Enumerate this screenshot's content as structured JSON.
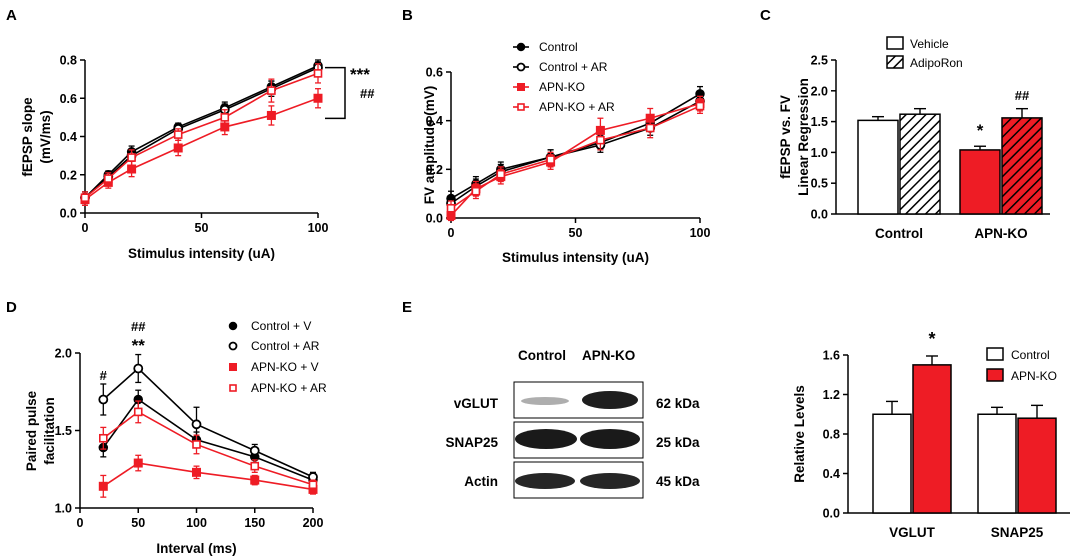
{
  "panels": {
    "A": "A",
    "B": "B",
    "C": "C",
    "D": "D",
    "E": "E"
  },
  "colors": {
    "black": "#000000",
    "red": "#ee1c25"
  },
  "chart_data": [
    {
      "id": "A",
      "type": "line",
      "xlabel": "Stimulus intensity (uA)",
      "ylabel": "fEPSP slope",
      "ylabel2": "(mV/ms)",
      "xlim": [
        0,
        100
      ],
      "ylim": [
        0,
        0.8
      ],
      "xticks": [
        0,
        50,
        100
      ],
      "yticks": [
        0.0,
        0.2,
        0.4,
        0.6,
        0.8
      ],
      "ytick_labels": [
        "0.0",
        "0.2",
        "0.4",
        "0.6",
        "0.8"
      ],
      "x": [
        0,
        10,
        20,
        40,
        60,
        80,
        100
      ],
      "series": [
        {
          "name": "Control",
          "color": "#000000",
          "marker": "filled-circle",
          "values": [
            0.08,
            0.2,
            0.32,
            0.45,
            0.55,
            0.66,
            0.77
          ],
          "err": [
            0.03,
            0.02,
            0.03,
            0.02,
            0.03,
            0.03,
            0.03
          ]
        },
        {
          "name": "Control + AR",
          "color": "#000000",
          "marker": "open-circle",
          "values": [
            0.08,
            0.19,
            0.3,
            0.44,
            0.54,
            0.65,
            0.76
          ],
          "err": [
            0.03,
            0.02,
            0.03,
            0.02,
            0.03,
            0.04,
            0.03
          ]
        },
        {
          "name": "APN-KO",
          "color": "#ee1c25",
          "marker": "filled-square",
          "values": [
            0.07,
            0.16,
            0.23,
            0.34,
            0.45,
            0.51,
            0.6
          ],
          "err": [
            0.03,
            0.03,
            0.04,
            0.04,
            0.04,
            0.05,
            0.05
          ]
        },
        {
          "name": "APN-KO + AR",
          "color": "#ee1c25",
          "marker": "open-square",
          "values": [
            0.08,
            0.18,
            0.29,
            0.41,
            0.5,
            0.64,
            0.73
          ],
          "err": [
            0.03,
            0.03,
            0.04,
            0.03,
            0.04,
            0.06,
            0.05
          ]
        }
      ],
      "annotations": [
        "***",
        "##"
      ]
    },
    {
      "id": "B",
      "type": "line",
      "xlabel": "Stimulus intensity (uA)",
      "ylabel": "FV amplitude (mV)",
      "xlim": [
        0,
        100
      ],
      "ylim": [
        0,
        0.6
      ],
      "xticks": [
        0,
        50,
        100
      ],
      "yticks": [
        0.0,
        0.2,
        0.4,
        0.6
      ],
      "ytick_labels": [
        "0.0",
        "0.2",
        "0.4",
        "0.6"
      ],
      "x": [
        0,
        10,
        20,
        40,
        60,
        80,
        100
      ],
      "series": [
        {
          "name": "Control",
          "color": "#000000",
          "marker": "filled-circle",
          "values": [
            0.08,
            0.14,
            0.2,
            0.25,
            0.31,
            0.39,
            0.51
          ],
          "err": [
            0.03,
            0.03,
            0.03,
            0.03,
            0.03,
            0.03,
            0.03
          ]
        },
        {
          "name": "Control + AR",
          "color": "#000000",
          "marker": "open-circle",
          "values": [
            0.06,
            0.13,
            0.19,
            0.25,
            0.3,
            0.37,
            0.48
          ],
          "err": [
            0.03,
            0.03,
            0.03,
            0.03,
            0.03,
            0.03,
            0.03
          ]
        },
        {
          "name": "APN-KO",
          "color": "#ee1c25",
          "marker": "filled-square",
          "values": [
            0.01,
            0.12,
            0.17,
            0.23,
            0.36,
            0.41,
            0.47
          ],
          "err": [
            0.02,
            0.03,
            0.03,
            0.03,
            0.05,
            0.04,
            0.03
          ]
        },
        {
          "name": "APN-KO + AR",
          "color": "#ee1c25",
          "marker": "open-square",
          "values": [
            0.04,
            0.11,
            0.18,
            0.24,
            0.32,
            0.37,
            0.46
          ],
          "err": [
            0.03,
            0.03,
            0.03,
            0.03,
            0.04,
            0.04,
            0.03
          ]
        }
      ]
    },
    {
      "id": "C",
      "type": "bar",
      "categories": [
        "Control",
        "APN-KO"
      ],
      "ylabel": "fEPSP vs. FV",
      "ylabel2": "Linear Regression",
      "ylim": [
        0,
        2.5
      ],
      "yticks": [
        0.0,
        0.5,
        1.0,
        1.5,
        2.0,
        2.5
      ],
      "ytick_labels": [
        "0.0",
        "0.5",
        "1.0",
        "1.5",
        "2.0",
        "2.5"
      ],
      "series": [
        {
          "name": "Vehicle",
          "values": [
            1.52,
            1.04
          ],
          "err": [
            0.06,
            0.06
          ]
        },
        {
          "name": "AdipoRon",
          "values": [
            1.62,
            1.56
          ],
          "err": [
            0.09,
            0.15
          ]
        }
      ],
      "annotations": [
        "*",
        "##"
      ]
    },
    {
      "id": "D",
      "type": "line",
      "xlabel": "Interval (ms)",
      "ylabel": "Paired pulse",
      "ylabel2": "facilitation",
      "xlim": [
        0,
        200
      ],
      "ylim": [
        1.0,
        2.0
      ],
      "xticks": [
        0,
        50,
        100,
        150,
        200
      ],
      "yticks": [
        1.0,
        1.5,
        2.0
      ],
      "ytick_labels": [
        "1.0",
        "1.5",
        "2.0"
      ],
      "x": [
        20,
        50,
        100,
        150,
        200
      ],
      "series": [
        {
          "name": "Control + V",
          "color": "#000000",
          "marker": "filled-circle",
          "values": [
            1.39,
            1.7,
            1.44,
            1.33,
            1.18
          ],
          "err": [
            0.06,
            0.06,
            0.05,
            0.04,
            0.03
          ]
        },
        {
          "name": "Control + AR",
          "color": "#000000",
          "marker": "open-circle",
          "values": [
            1.7,
            1.9,
            1.54,
            1.37,
            1.2
          ],
          "err": [
            0.1,
            0.09,
            0.11,
            0.04,
            0.03
          ]
        },
        {
          "name": "APN-KO + V",
          "color": "#ee1c25",
          "marker": "filled-square",
          "values": [
            1.14,
            1.29,
            1.23,
            1.18,
            1.12
          ],
          "err": [
            0.07,
            0.05,
            0.04,
            0.03,
            0.03
          ]
        },
        {
          "name": "APN-KO + AR",
          "color": "#ee1c25",
          "marker": "open-square",
          "values": [
            1.45,
            1.62,
            1.41,
            1.27,
            1.15
          ],
          "err": [
            0.07,
            0.07,
            0.06,
            0.04,
            0.03
          ]
        }
      ],
      "annotations": [
        "#",
        "##",
        "**"
      ]
    },
    {
      "id": "E",
      "type": "bar",
      "categories": [
        "VGLUT",
        "SNAP25"
      ],
      "ylabel": "Relative Levels",
      "ylim": [
        0,
        1.6
      ],
      "yticks": [
        0.0,
        0.4,
        0.8,
        1.2,
        1.6
      ],
      "ytick_labels": [
        "0.0",
        "0.4",
        "0.8",
        "1.2",
        "1.6"
      ],
      "series": [
        {
          "name": "Control",
          "values": [
            1.0,
            1.0
          ],
          "err": [
            0.13,
            0.07
          ]
        },
        {
          "name": "APN-KO",
          "values": [
            1.5,
            0.96
          ],
          "err": [
            0.09,
            0.13
          ]
        }
      ],
      "annotations": [
        "*"
      ]
    }
  ],
  "blot": {
    "header": [
      "Control",
      "APN-KO"
    ],
    "rows": [
      {
        "protein": "vGLUT",
        "size": "62 kDa"
      },
      {
        "protein": "SNAP25",
        "size": "25 kDa"
      },
      {
        "protein": "Actin",
        "size": "45 kDa"
      }
    ]
  }
}
